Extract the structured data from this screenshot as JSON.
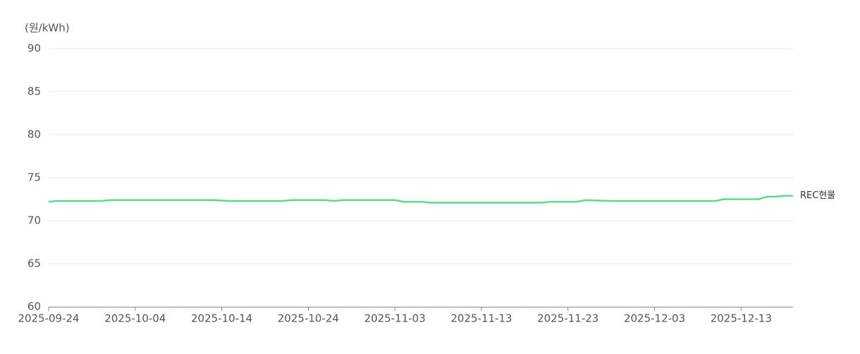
{
  "chart_data": {
    "type": "line",
    "y_label": "(원/kWh)",
    "x": [
      "2025-09-24",
      "2025-09-25",
      "2025-09-30",
      "2025-10-01",
      "2025-10-13",
      "2025-10-15",
      "2025-10-21",
      "2025-10-22",
      "2025-10-26",
      "2025-10-27",
      "2025-10-28",
      "2025-11-03",
      "2025-11-04",
      "2025-11-06",
      "2025-11-07",
      "2025-11-20",
      "2025-11-21",
      "2025-11-24",
      "2025-11-25",
      "2025-11-28",
      "2025-12-10",
      "2025-12-11",
      "2025-12-15",
      "2025-12-16",
      "2025-12-17",
      "2025-12-18",
      "2025-12-19"
    ],
    "series": [
      {
        "name": "REC현물",
        "color": "#5dd98c",
        "values": [
          72.2,
          72.3,
          72.3,
          72.4,
          72.4,
          72.3,
          72.3,
          72.4,
          72.4,
          72.3,
          72.4,
          72.4,
          72.2,
          72.2,
          72.1,
          72.1,
          72.2,
          72.2,
          72.4,
          72.3,
          72.3,
          72.5,
          72.5,
          72.8,
          72.8,
          72.9,
          72.9
        ]
      }
    ],
    "xlim": [
      "2025-09-24",
      "2025-12-19"
    ],
    "xticks": [
      "2025-09-24",
      "2025-10-04",
      "2025-10-14",
      "2025-10-24",
      "2025-11-03",
      "2025-11-13",
      "2025-11-23",
      "2025-12-03",
      "2025-12-13"
    ],
    "ylim": [
      60,
      90
    ],
    "yticks": [
      60,
      65,
      70,
      75,
      80,
      85,
      90
    ],
    "grid": true
  }
}
